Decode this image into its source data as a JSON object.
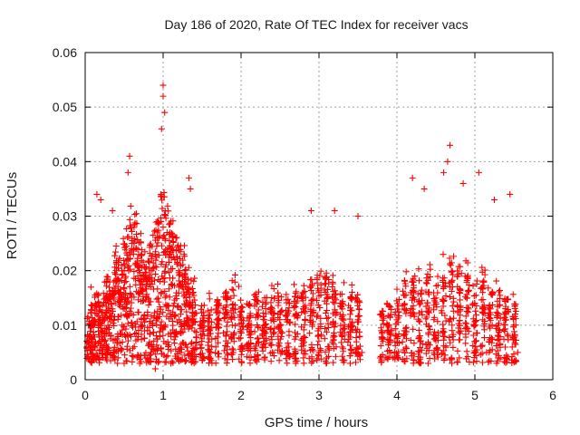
{
  "chart_data": {
    "type": "scatter",
    "title": "Day 186 of 2020, Rate Of TEC Index for receiver vacs",
    "xlabel": "GPS time / hours",
    "ylabel": "ROTI / TECUs",
    "xlim": [
      0,
      6
    ],
    "ylim": [
      0,
      0.06
    ],
    "xticks": [
      0,
      1,
      2,
      3,
      4,
      5,
      6
    ],
    "yticks": [
      0,
      0.01,
      0.02,
      0.03,
      0.04,
      0.05,
      0.06
    ],
    "xtick_labels": [
      "0",
      "1",
      "2",
      "3",
      "4",
      "5",
      "6"
    ],
    "ytick_labels": [
      "0",
      "0.01",
      "0.02",
      "0.03",
      "0.04",
      "0.05",
      "0.06"
    ],
    "grid": true,
    "marker": "+",
    "color": "#ff0000",
    "series": [
      {
        "name": "ROTI",
        "x": [
          0.05,
          0.1,
          0.15,
          0.2,
          0.25,
          0.3,
          0.35,
          0.4,
          0.45,
          0.5,
          0.55,
          0.6,
          0.65,
          0.7,
          0.75,
          0.8,
          0.85,
          0.9,
          0.95,
          1.0,
          1.05,
          1.1,
          1.15,
          1.2,
          1.25,
          1.3,
          1.35,
          1.4,
          1.5,
          1.6,
          1.7,
          1.8,
          1.9,
          2.0,
          2.1,
          2.2,
          2.3,
          2.4,
          2.5,
          2.6,
          2.7,
          2.8,
          2.9,
          3.0,
          3.1,
          3.2,
          3.3,
          3.4,
          3.5,
          3.8,
          3.9,
          4.0,
          4.1,
          4.2,
          4.3,
          4.4,
          4.5,
          4.6,
          4.7,
          4.8,
          4.9,
          5.0,
          5.1,
          5.2,
          5.3,
          5.4,
          5.5,
          1.0,
          1.0,
          0.98,
          1.02,
          0.57,
          0.55,
          0.2,
          0.15,
          0.35,
          1.35,
          1.33,
          4.68,
          4.65,
          4.85,
          5.05,
          5.25,
          5.45,
          2.9,
          3.2,
          3.5,
          4.2,
          4.35,
          4.6,
          0.1,
          0.3,
          0.7,
          0.9,
          1.2,
          1.6,
          2.0,
          2.4,
          2.8,
          3.0,
          3.3,
          3.55,
          3.85,
          4.1,
          4.4,
          4.7,
          5.0,
          5.3,
          5.55,
          0.02,
          0.08,
          0.5,
          0.8,
          1.1,
          1.5,
          1.9,
          2.3,
          2.7,
          3.1,
          3.4,
          3.95,
          4.3,
          4.8,
          5.15,
          5.48
        ],
        "y": [
          0.008,
          0.01,
          0.012,
          0.009,
          0.011,
          0.015,
          0.013,
          0.018,
          0.016,
          0.02,
          0.022,
          0.025,
          0.024,
          0.021,
          0.019,
          0.018,
          0.02,
          0.023,
          0.026,
          0.028,
          0.027,
          0.024,
          0.022,
          0.02,
          0.018,
          0.016,
          0.014,
          0.012,
          0.01,
          0.009,
          0.011,
          0.012,
          0.013,
          0.011,
          0.01,
          0.012,
          0.011,
          0.013,
          0.012,
          0.011,
          0.012,
          0.013,
          0.014,
          0.016,
          0.015,
          0.014,
          0.013,
          0.012,
          0.011,
          0.009,
          0.01,
          0.011,
          0.013,
          0.015,
          0.014,
          0.016,
          0.015,
          0.017,
          0.018,
          0.016,
          0.015,
          0.014,
          0.016,
          0.013,
          0.012,
          0.011,
          0.01,
          0.054,
          0.052,
          0.046,
          0.049,
          0.041,
          0.038,
          0.033,
          0.034,
          0.031,
          0.035,
          0.037,
          0.043,
          0.04,
          0.036,
          0.038,
          0.033,
          0.034,
          0.031,
          0.031,
          0.03,
          0.037,
          0.035,
          0.038,
          0.004,
          0.005,
          0.003,
          0.002,
          0.004,
          0.005,
          0.006,
          0.005,
          0.004,
          0.005,
          0.006,
          0.005,
          0.004,
          0.005,
          0.003,
          0.004,
          0.005,
          0.004,
          0.005,
          0.006,
          0.007,
          0.003,
          0.004,
          0.003,
          0.004,
          0.005,
          0.004,
          0.003,
          0.004,
          0.003,
          0.004,
          0.003,
          0.004,
          0.005,
          0.006
        ]
      }
    ]
  }
}
